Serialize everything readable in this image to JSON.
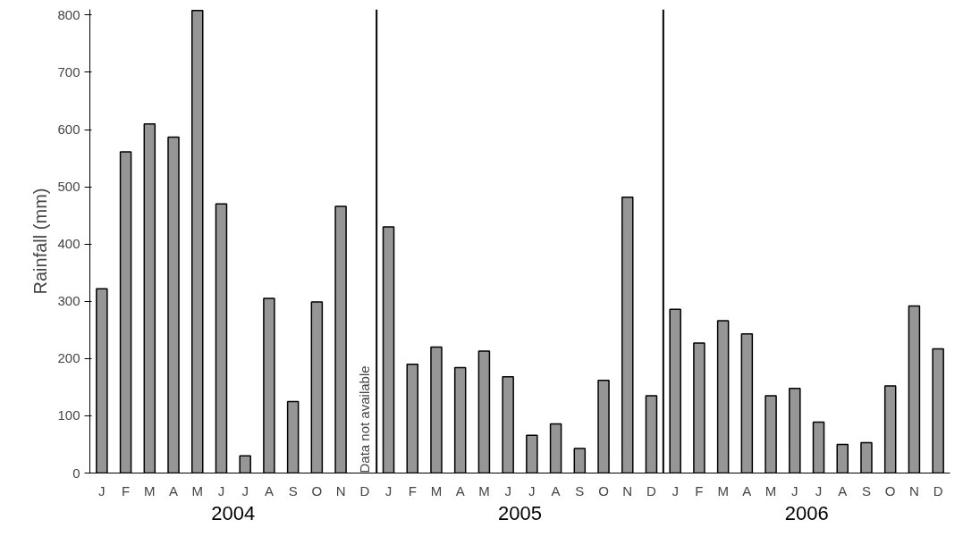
{
  "chart_data": {
    "type": "bar",
    "ylabel": "Rainfall (mm)",
    "categories": [
      "J",
      "F",
      "M",
      "A",
      "M",
      "J",
      "J",
      "A",
      "S",
      "O",
      "N",
      "D",
      "J",
      "F",
      "M",
      "A",
      "M",
      "J",
      "J",
      "A",
      "S",
      "O",
      "N",
      "D",
      "J",
      "F",
      "M",
      "A",
      "M",
      "J",
      "J",
      "A",
      "S",
      "O",
      "N",
      "D"
    ],
    "values": [
      322,
      561,
      610,
      587,
      808,
      470,
      30,
      305,
      125,
      299,
      466,
      null,
      430,
      190,
      220,
      184,
      213,
      168,
      66,
      86,
      43,
      162,
      482,
      135,
      286,
      227,
      266,
      243,
      135,
      148,
      89,
      50,
      53,
      152,
      292,
      217
    ],
    "color": "#969696",
    "ylim": [
      0,
      810
    ],
    "yticks": [
      0,
      100,
      200,
      300,
      400,
      500,
      600,
      700,
      800
    ],
    "grid": false,
    "annotations": [
      "Data not available",
      "2004",
      "2005",
      "2006"
    ]
  }
}
